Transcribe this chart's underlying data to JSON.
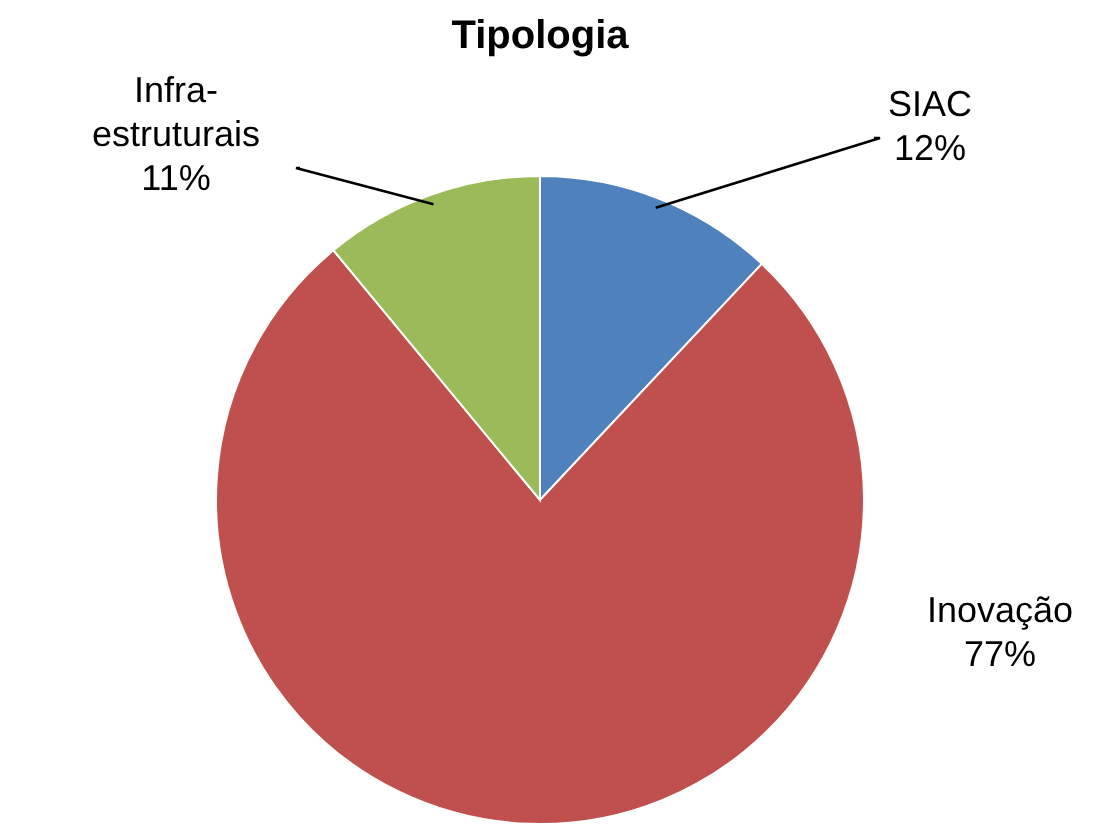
{
  "chart_data": {
    "type": "pie",
    "title": "Tipologia",
    "categories": [
      "SIAC",
      "Inovação",
      "Infra-estruturais"
    ],
    "values": [
      12,
      77,
      11
    ],
    "colors": [
      "#4f81bd",
      "#c0504d",
      "#9bbb59"
    ],
    "value_labels": [
      "12%",
      "77%",
      "11%"
    ]
  }
}
